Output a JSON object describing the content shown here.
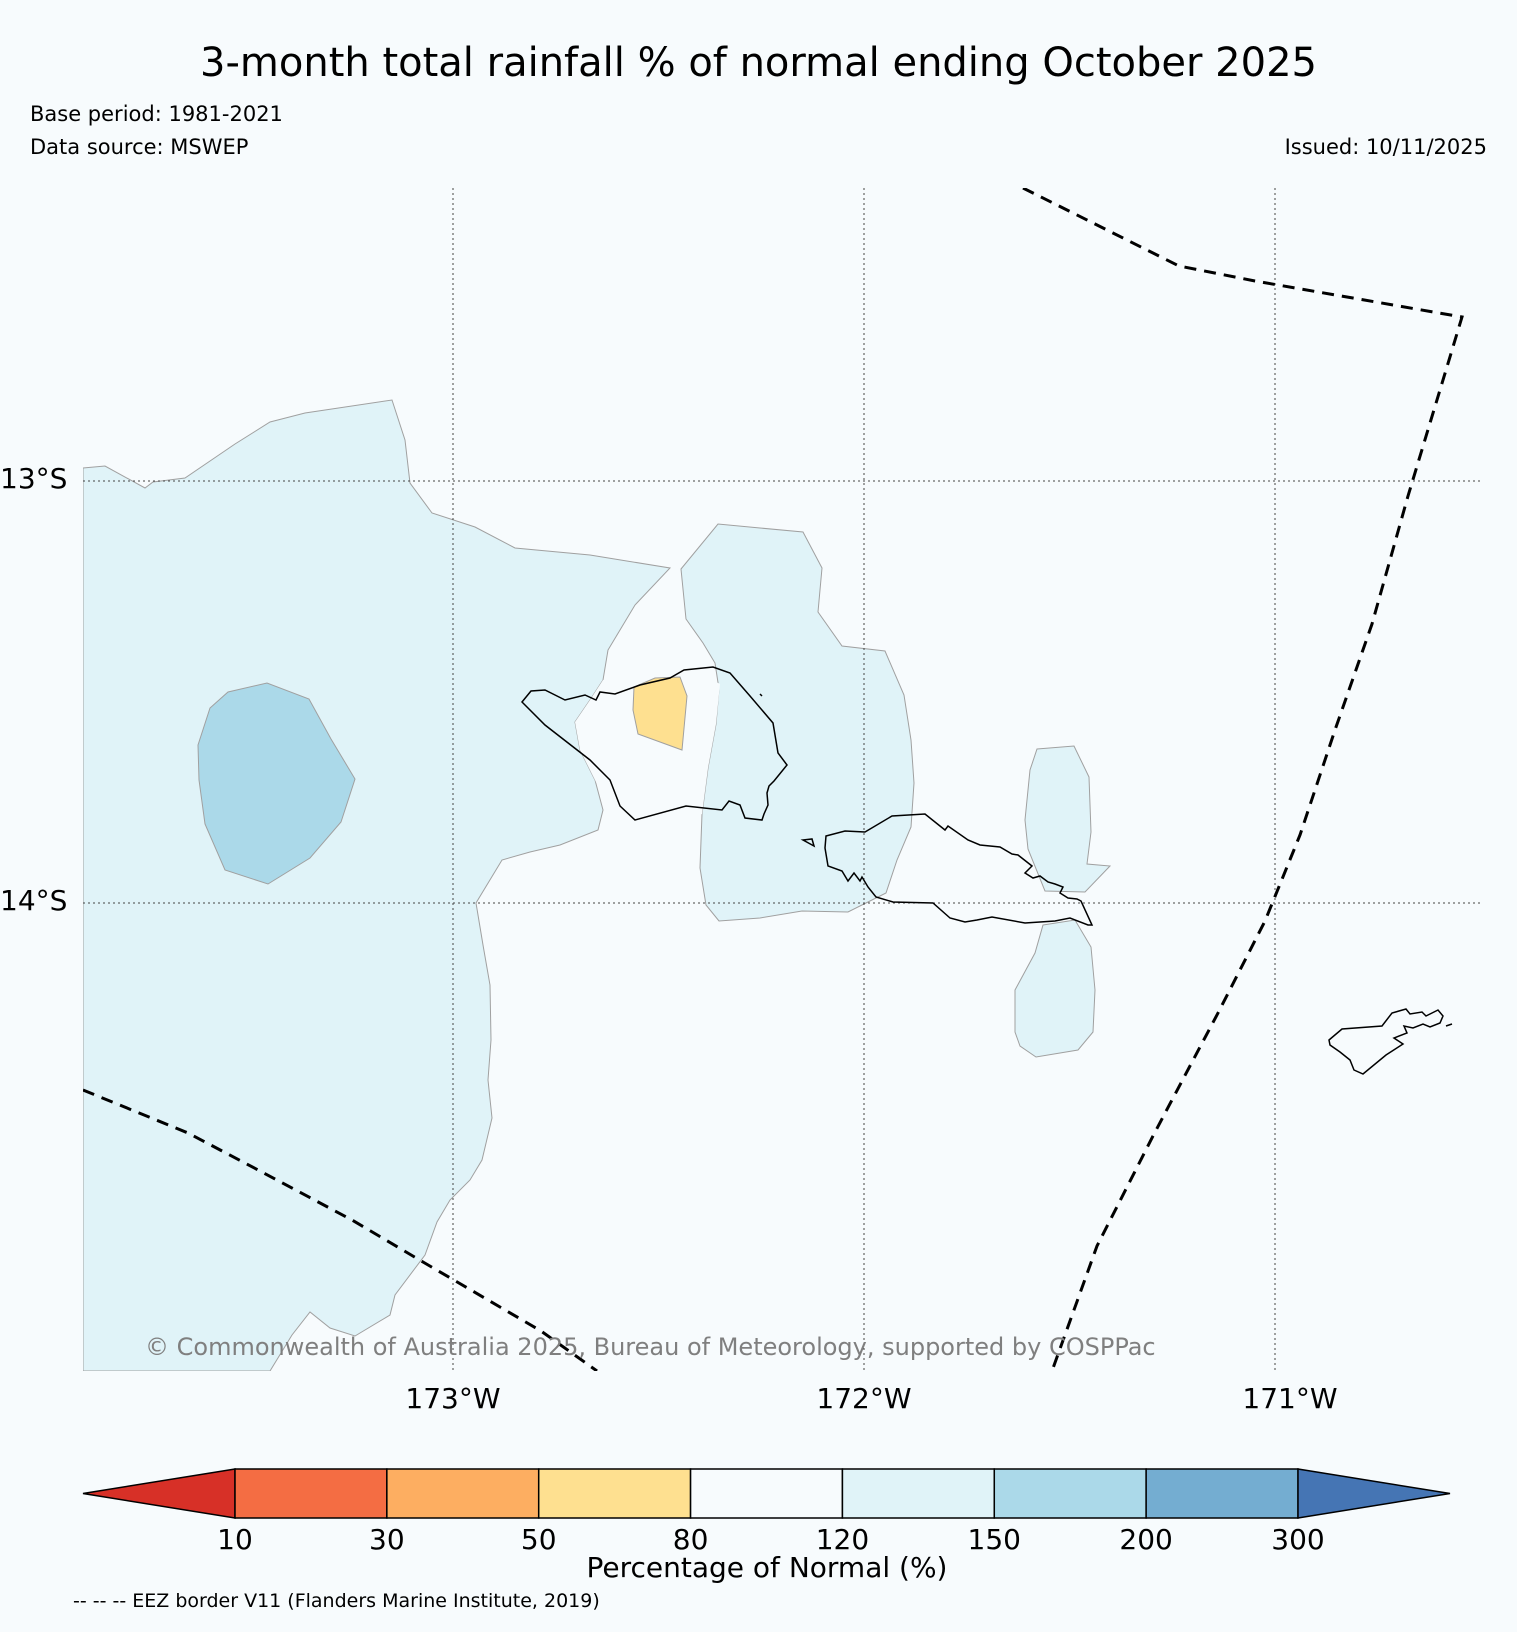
{
  "title": "3-month total rainfall % of normal ending October 2025",
  "base_period": "Base period: 1981-2021",
  "data_source": "Data source: MSWEP",
  "issued": "Issued: 10/11/2025",
  "copyright": "© Commonwealth of Australia 2025, Bureau of Meteorology, supported by COSPPac",
  "axes": {
    "lon_labels": [
      "173°W",
      "172°W",
      "171°W"
    ],
    "lat_labels": [
      "13°S",
      "14°S"
    ]
  },
  "colorbar": {
    "label": "Percentage of Normal (%)",
    "ticks": [
      "10",
      "30",
      "50",
      "80",
      "120",
      "150",
      "200",
      "300"
    ],
    "colors": [
      "#d73027",
      "#f46d43",
      "#fdae61",
      "#fee090",
      "#f7fbfd",
      "#e0f3f8",
      "#abd9e9",
      "#74add1",
      "#4575b4"
    ]
  },
  "legend_note": "-- -- -- EEZ border V11 (Flanders Marine Institute, 2019)",
  "map_legend": {
    "below_normal_color": "#fee090",
    "above_normal_color": "#e0f3f8",
    "well_above_normal_color": "#abd9e9"
  }
}
